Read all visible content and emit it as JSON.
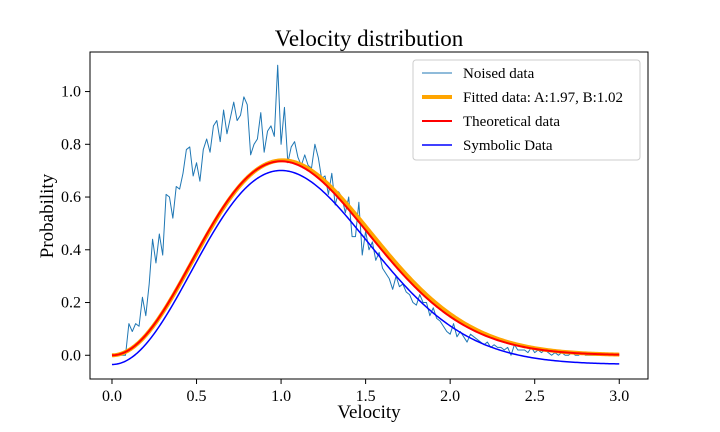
{
  "chart_data": {
    "type": "line",
    "title": "Velocity distribution",
    "xlabel": "Velocity",
    "ylabel": "Probability",
    "xlim": [
      -0.13,
      3.17
    ],
    "ylim": [
      -0.09,
      1.15
    ],
    "xticks": [
      0.0,
      0.5,
      1.0,
      1.5,
      2.0,
      2.5,
      3.0
    ],
    "yticks": [
      0.0,
      0.2,
      0.4,
      0.6,
      0.8,
      1.0
    ],
    "xtick_labels": [
      "0.0",
      "0.5",
      "1.0",
      "1.5",
      "2.0",
      "2.5",
      "3.0"
    ],
    "ytick_labels": [
      "0.0",
      "0.2",
      "0.4",
      "0.6",
      "0.8",
      "1.0"
    ],
    "grid": false,
    "legend_position": "top-right",
    "series": [
      {
        "name": "Noised data",
        "color": "#1f77b4",
        "style": "thin",
        "x": [
          0.0,
          0.02,
          0.04,
          0.06,
          0.08,
          0.1,
          0.12,
          0.14,
          0.16,
          0.18,
          0.2,
          0.22,
          0.24,
          0.26,
          0.28,
          0.3,
          0.32,
          0.34,
          0.36,
          0.38,
          0.4,
          0.42,
          0.44,
          0.46,
          0.48,
          0.5,
          0.52,
          0.54,
          0.56,
          0.58,
          0.6,
          0.62,
          0.64,
          0.66,
          0.68,
          0.7,
          0.72,
          0.74,
          0.76,
          0.78,
          0.8,
          0.82,
          0.84,
          0.86,
          0.88,
          0.9,
          0.92,
          0.94,
          0.96,
          0.98,
          1.0,
          1.02,
          1.04,
          1.06,
          1.08,
          1.1,
          1.12,
          1.14,
          1.16,
          1.18,
          1.2,
          1.22,
          1.24,
          1.26,
          1.28,
          1.3,
          1.32,
          1.34,
          1.36,
          1.38,
          1.4,
          1.42,
          1.44,
          1.46,
          1.48,
          1.5,
          1.52,
          1.54,
          1.56,
          1.58,
          1.6,
          1.62,
          1.64,
          1.66,
          1.68,
          1.7,
          1.72,
          1.74,
          1.76,
          1.78,
          1.8,
          1.82,
          1.84,
          1.86,
          1.88,
          1.9,
          1.92,
          1.94,
          1.96,
          1.98,
          2.0,
          2.02,
          2.04,
          2.06,
          2.08,
          2.1,
          2.12,
          2.14,
          2.16,
          2.18,
          2.2,
          2.22,
          2.24,
          2.26,
          2.28,
          2.3,
          2.32,
          2.34,
          2.36,
          2.38,
          2.4,
          2.42,
          2.44,
          2.46,
          2.48,
          2.5,
          2.52,
          2.54,
          2.56,
          2.58,
          2.6,
          2.62,
          2.64,
          2.66,
          2.68,
          2.7,
          2.72,
          2.74,
          2.76,
          2.78,
          2.8,
          2.82,
          2.84,
          2.86,
          2.88,
          2.9,
          2.92,
          2.94,
          2.96,
          2.98,
          3.0
        ],
        "y": [
          0.0,
          0.0,
          0.0,
          0.0,
          0.0,
          0.12,
          0.09,
          0.12,
          0.11,
          0.22,
          0.15,
          0.27,
          0.44,
          0.35,
          0.46,
          0.38,
          0.61,
          0.6,
          0.52,
          0.64,
          0.63,
          0.69,
          0.78,
          0.79,
          0.68,
          0.73,
          0.66,
          0.78,
          0.82,
          0.77,
          0.87,
          0.89,
          0.81,
          0.93,
          0.84,
          0.9,
          0.96,
          0.89,
          0.91,
          0.98,
          0.95,
          0.76,
          0.8,
          0.82,
          0.92,
          0.77,
          0.85,
          0.87,
          0.83,
          1.1,
          0.8,
          0.94,
          0.73,
          0.79,
          0.81,
          0.75,
          0.72,
          0.76,
          0.72,
          0.71,
          0.8,
          0.75,
          0.67,
          0.68,
          0.61,
          0.69,
          0.57,
          0.62,
          0.6,
          0.54,
          0.6,
          0.45,
          0.45,
          0.58,
          0.38,
          0.47,
          0.4,
          0.43,
          0.36,
          0.39,
          0.33,
          0.31,
          0.29,
          0.25,
          0.3,
          0.26,
          0.27,
          0.24,
          0.23,
          0.2,
          0.19,
          0.23,
          0.2,
          0.2,
          0.15,
          0.18,
          0.14,
          0.13,
          0.11,
          0.09,
          0.08,
          0.12,
          0.07,
          0.09,
          0.07,
          0.05,
          0.08,
          0.07,
          0.06,
          0.05,
          0.04,
          0.05,
          0.03,
          0.04,
          0.03,
          0.03,
          0.02,
          0.03,
          0.0,
          0.04,
          0.02,
          0.02,
          0.02,
          0.01,
          0.03,
          0.01,
          0.02,
          0.01,
          0.02,
          0.01,
          0.0,
          0.01,
          0.0,
          0.01,
          0.0,
          0.0,
          0.01,
          0.0,
          0.0,
          0.01,
          0.0,
          0.0,
          0.0,
          0.0,
          0.0,
          0.0,
          0.0,
          0.0,
          0.0,
          0.0,
          0.0
        ]
      },
      {
        "name": "Fitted data: A:1.97, B:1.02",
        "color": "#ffa500",
        "style": "thick",
        "function": "maxwell",
        "A": 1.97,
        "B": 1.02,
        "shift": 0.0,
        "x_start": 0.0,
        "x_end": 3.0
      },
      {
        "name": "Theoretical data",
        "color": "#ff0000",
        "style": "medium",
        "function": "maxwell",
        "A": 2.0,
        "B": 1.0,
        "shift": 0.0,
        "x_start": 0.0,
        "x_end": 3.0
      },
      {
        "name": "Symbolic Data",
        "color": "#0000ff",
        "style": "thin-medium",
        "function": "maxwell",
        "A": 2.0,
        "B": 1.0,
        "shift": -0.035,
        "x_start": 0.0,
        "x_end": 3.0
      }
    ]
  }
}
